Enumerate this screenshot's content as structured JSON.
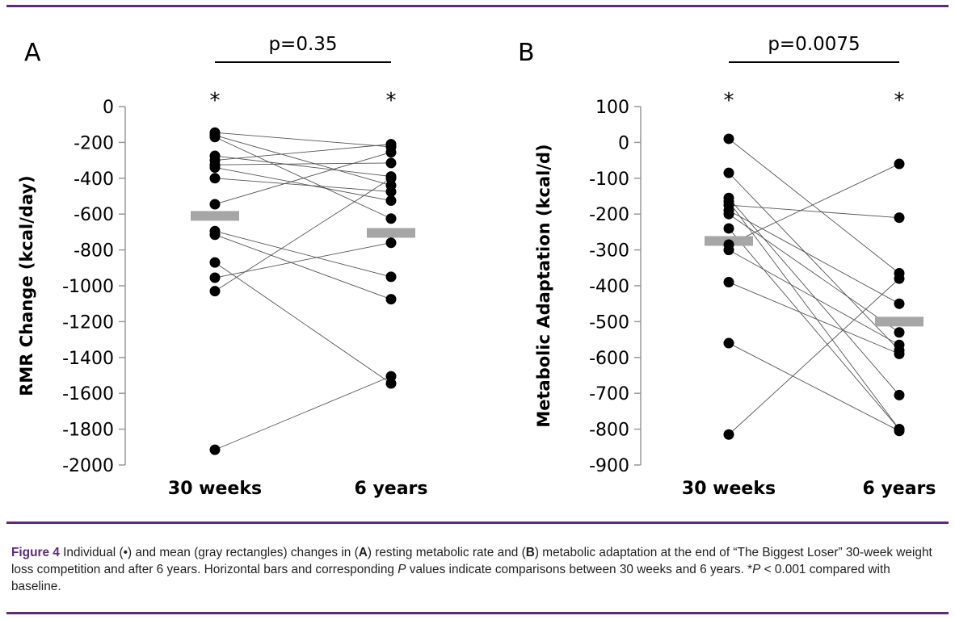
{
  "figure": {
    "caption_label": "Figure 4",
    "caption_parts": {
      "p1": " Individual (•) and mean (gray rectangles) changes in (",
      "A": "A",
      "p2": ") resting metabolic rate and  (",
      "B": "B",
      "p3": ") metabolic adaptation at the end of “The Biggest Loser” 30-week weight loss competition and after 6 years. Horizontal bars and corresponding ",
      "P1": "P",
      "p4": " values indicate comparisons between 30 weeks and 6 years. *",
      "P2": "P",
      "p5": " < 0.001 compared with baseline."
    }
  },
  "colors": {
    "rule": "#5b2d74",
    "mean_bar": "#a6a6a6",
    "points": "#000000",
    "lines": "#555555"
  },
  "chart_data": [
    {
      "type": "scatter",
      "panel_label": "A",
      "ylabel": "RMR Change (kcal/day)",
      "categories": [
        "30 weeks",
        "6 years"
      ],
      "ylim": [
        -2000,
        0
      ],
      "yticks": [
        0,
        -200,
        -400,
        -600,
        -800,
        -1000,
        -1200,
        -1400,
        -1600,
        -1800,
        -2000
      ],
      "significance": {
        "label": "p=0.35",
        "stars": [
          "*",
          "*"
        ]
      },
      "means": [
        -610,
        -705
      ],
      "pairs": [
        [
          -145,
          -225
        ],
        [
          -160,
          -440
        ],
        [
          -170,
          -625
        ],
        [
          -275,
          -390
        ],
        [
          -300,
          -210
        ],
        [
          -325,
          -315
        ],
        [
          -340,
          -525
        ],
        [
          -400,
          -475
        ],
        [
          -545,
          -255
        ],
        [
          -695,
          -950
        ],
        [
          -715,
          -1075
        ],
        [
          -870,
          -1545
        ],
        [
          -955,
          -760
        ],
        [
          -1030,
          -400
        ],
        [
          -1915,
          -1505
        ]
      ]
    },
    {
      "type": "scatter",
      "panel_label": "B",
      "ylabel": "Metabolic Adaptation (kcal/d)",
      "categories": [
        "30 weeks",
        "6 years"
      ],
      "ylim": [
        -900,
        100
      ],
      "yticks": [
        100,
        0,
        -100,
        -200,
        -300,
        -400,
        -500,
        -600,
        -700,
        -800,
        -900
      ],
      "significance": {
        "label": "p=0.0075",
        "stars": [
          "*",
          "*"
        ]
      },
      "means": [
        -275,
        -500
      ],
      "pairs": [
        [
          10,
          -365
        ],
        [
          -85,
          -580
        ],
        [
          -155,
          -705
        ],
        [
          -165,
          -800
        ],
        [
          -175,
          -210
        ],
        [
          -190,
          -450
        ],
        [
          -200,
          -530
        ],
        [
          -240,
          -800
        ],
        [
          -285,
          -60
        ],
        [
          -300,
          -565
        ],
        [
          -390,
          -590
        ],
        [
          -560,
          -805
        ],
        [
          -815,
          -380
        ]
      ]
    }
  ]
}
